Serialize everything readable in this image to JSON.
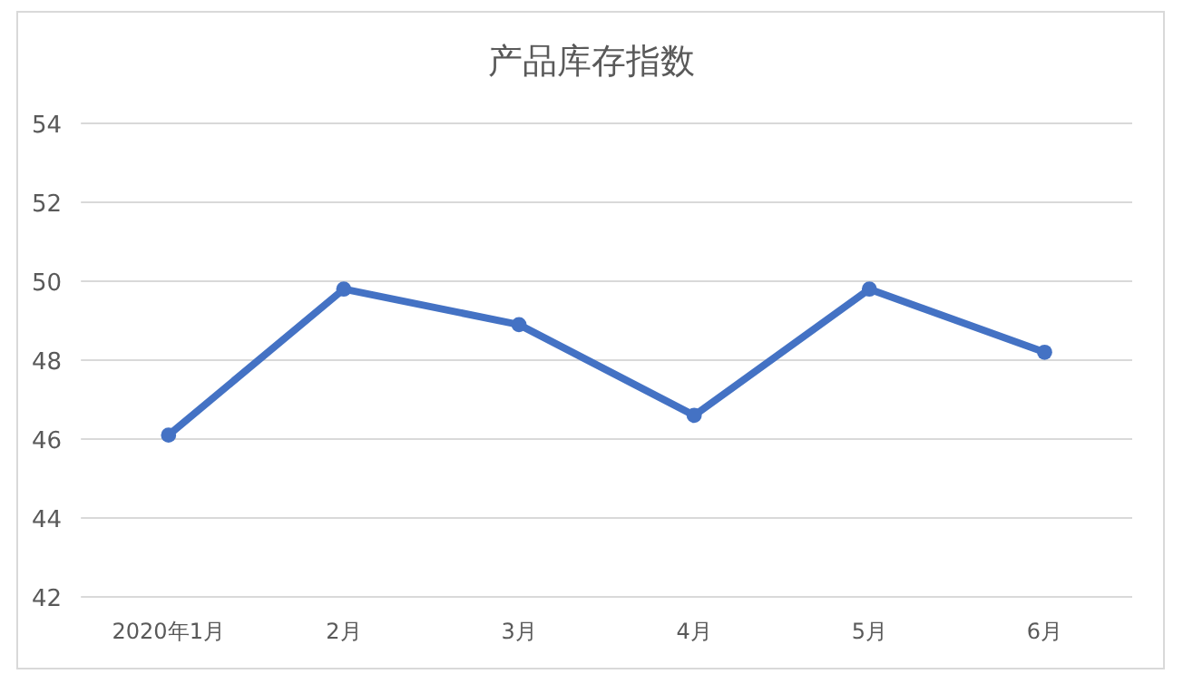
{
  "chart_data": {
    "type": "line",
    "title": "产品库存指数",
    "categories": [
      "2020年1月",
      "2月",
      "3月",
      "4月",
      "5月",
      "6月"
    ],
    "series": [
      {
        "color": "#4472c4",
        "values": [
          46.1,
          49.8,
          48.9,
          46.6,
          49.8,
          48.2
        ]
      }
    ],
    "ylim": [
      42,
      54
    ],
    "yticks": [
      42,
      44,
      46,
      48,
      50,
      52,
      54
    ],
    "grid": "y",
    "marker": "circle"
  }
}
